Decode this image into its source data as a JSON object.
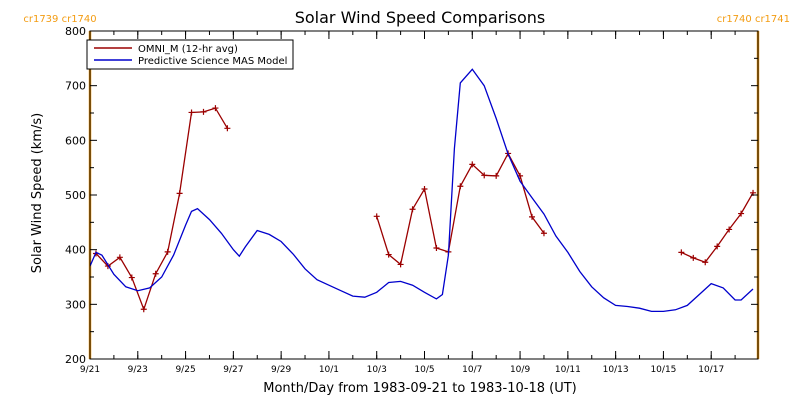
{
  "chart_data": {
    "type": "line",
    "title": "Solar Wind Speed Comparisons",
    "xlabel": "Month/Day from 1983-09-21 to 1983-10-18 (UT)",
    "ylabel": "Solar Wind Speed (km/s)",
    "ylim": [
      200,
      800
    ],
    "yticks": [
      200,
      300,
      400,
      500,
      600,
      700,
      800
    ],
    "xlim": [
      "1983-09-21T00:00",
      "1983-10-18T23:00"
    ],
    "xticks": [
      {
        "date": "1983-09-21",
        "label": "9/21"
      },
      {
        "date": "1983-09-23",
        "label": "9/23"
      },
      {
        "date": "1983-09-25",
        "label": "9/25"
      },
      {
        "date": "1983-09-27",
        "label": "9/27"
      },
      {
        "date": "1983-09-29",
        "label": "9/29"
      },
      {
        "date": "1983-10-01",
        "label": "10/1"
      },
      {
        "date": "1983-10-03",
        "label": "10/3"
      },
      {
        "date": "1983-10-05",
        "label": "10/5"
      },
      {
        "date": "1983-10-07",
        "label": "10/7"
      },
      {
        "date": "1983-10-09",
        "label": "10/9"
      },
      {
        "date": "1983-10-11",
        "label": "10/11"
      },
      {
        "date": "1983-10-13",
        "label": "10/13"
      },
      {
        "date": "1983-10-15",
        "label": "10/15"
      },
      {
        "date": "1983-10-17",
        "label": "10/17"
      }
    ],
    "carrington_markers": [
      {
        "date": "1983-09-21T00:00",
        "label": "cr1739 cr1740",
        "color": "#f39c12"
      },
      {
        "date": "1983-10-18T23:00",
        "label": "cr1740 cr1741",
        "color": "#f39c12"
      }
    ],
    "legend_position": "top-left",
    "series": [
      {
        "name": "OMNI_M (12-hr avg)",
        "color": "#9b0000",
        "marker": "plus",
        "segments": [
          [
            [
              "1983-09-21T06:00",
              393
            ],
            [
              "1983-09-21T18:00",
              370
            ],
            [
              "1983-09-22T06:00",
              386
            ],
            [
              "1983-09-22T18:00",
              349
            ],
            [
              "1983-09-23T06:00",
              291
            ],
            [
              "1983-09-23T18:00",
              356
            ],
            [
              "1983-09-24T06:00",
              396
            ],
            [
              "1983-09-24T18:00",
              503
            ],
            [
              "1983-09-25T06:00",
              651
            ],
            [
              "1983-09-25T18:00",
              652
            ],
            [
              "1983-09-26T06:00",
              659
            ],
            [
              "1983-09-26T18:00",
              622
            ]
          ],
          [
            [
              "1983-10-03T00:00",
              461
            ],
            [
              "1983-10-03T12:00",
              391
            ],
            [
              "1983-10-04T00:00",
              373
            ],
            [
              "1983-10-04T12:00",
              474
            ],
            [
              "1983-10-05T00:00",
              511
            ],
            [
              "1983-10-05T12:00",
              403
            ],
            [
              "1983-10-06T00:00",
              396
            ],
            [
              "1983-10-06T12:00",
              516
            ],
            [
              "1983-10-07T00:00",
              556
            ],
            [
              "1983-10-07T12:00",
              536
            ],
            [
              "1983-10-08T00:00",
              535
            ],
            [
              "1983-10-08T12:00",
              576
            ],
            [
              "1983-10-09T00:00",
              535
            ],
            [
              "1983-10-09T12:00",
              460
            ],
            [
              "1983-10-10T00:00",
              430
            ]
          ],
          [
            [
              "1983-10-15T18:00",
              395
            ],
            [
              "1983-10-16T06:00",
              385
            ],
            [
              "1983-10-16T18:00",
              377
            ],
            [
              "1983-10-17T06:00",
              406
            ],
            [
              "1983-10-17T18:00",
              437
            ],
            [
              "1983-10-18T06:00",
              466
            ],
            [
              "1983-10-18T18:00",
              504
            ]
          ]
        ]
      },
      {
        "name": "Predictive Science MAS Model",
        "color": "#0000cc",
        "marker": "none",
        "segments": [
          [
            [
              "1983-09-21T00:00",
              370
            ],
            [
              "1983-09-21T06:00",
              395
            ],
            [
              "1983-09-21T12:00",
              390
            ],
            [
              "1983-09-22T00:00",
              355
            ],
            [
              "1983-09-22T12:00",
              332
            ],
            [
              "1983-09-23T00:00",
              325
            ],
            [
              "1983-09-23T12:00",
              330
            ],
            [
              "1983-09-24T00:00",
              350
            ],
            [
              "1983-09-24T12:00",
              390
            ],
            [
              "1983-09-25T00:00",
              445
            ],
            [
              "1983-09-25T06:00",
              470
            ],
            [
              "1983-09-25T12:00",
              475
            ],
            [
              "1983-09-26T00:00",
              455
            ],
            [
              "1983-09-26T12:00",
              430
            ],
            [
              "1983-09-27T00:00",
              400
            ],
            [
              "1983-09-27T06:00",
              388
            ],
            [
              "1983-09-27T12:00",
              405
            ],
            [
              "1983-09-28T00:00",
              435
            ],
            [
              "1983-09-28T12:00",
              428
            ],
            [
              "1983-09-29T00:00",
              415
            ],
            [
              "1983-09-29T12:00",
              392
            ],
            [
              "1983-09-30T00:00",
              365
            ],
            [
              "1983-09-30T12:00",
              345
            ],
            [
              "1983-10-01T00:00",
              335
            ],
            [
              "1983-10-01T12:00",
              325
            ],
            [
              "1983-10-02T00:00",
              315
            ],
            [
              "1983-10-02T12:00",
              313
            ],
            [
              "1983-10-03T00:00",
              322
            ],
            [
              "1983-10-03T12:00",
              340
            ],
            [
              "1983-10-04T00:00",
              342
            ],
            [
              "1983-10-04T12:00",
              335
            ],
            [
              "1983-10-05T00:00",
              322
            ],
            [
              "1983-10-05T12:00",
              310
            ],
            [
              "1983-10-05T18:00",
              318
            ],
            [
              "1983-10-06T00:00",
              390
            ],
            [
              "1983-10-06T06:00",
              585
            ],
            [
              "1983-10-06T12:00",
              705
            ],
            [
              "1983-10-07T00:00",
              730
            ],
            [
              "1983-10-07T12:00",
              700
            ],
            [
              "1983-10-08T00:00",
              640
            ],
            [
              "1983-10-08T12:00",
              575
            ],
            [
              "1983-10-09T00:00",
              525
            ],
            [
              "1983-10-09T12:00",
              495
            ],
            [
              "1983-10-10T00:00",
              465
            ],
            [
              "1983-10-10T12:00",
              425
            ],
            [
              "1983-10-11T00:00",
              395
            ],
            [
              "1983-10-11T12:00",
              360
            ],
            [
              "1983-10-12T00:00",
              332
            ],
            [
              "1983-10-12T12:00",
              312
            ],
            [
              "1983-10-13T00:00",
              298
            ],
            [
              "1983-10-13T12:00",
              296
            ],
            [
              "1983-10-14T00:00",
              293
            ],
            [
              "1983-10-14T12:00",
              287
            ],
            [
              "1983-10-15T00:00",
              287
            ],
            [
              "1983-10-15T12:00",
              290
            ],
            [
              "1983-10-16T00:00",
              298
            ],
            [
              "1983-10-16T12:00",
              318
            ],
            [
              "1983-10-17T00:00",
              338
            ],
            [
              "1983-10-17T12:00",
              330
            ],
            [
              "1983-10-18T00:00",
              308
            ],
            [
              "1983-10-18T06:00",
              308
            ],
            [
              "1983-10-18T18:00",
              328
            ]
          ]
        ]
      }
    ]
  }
}
